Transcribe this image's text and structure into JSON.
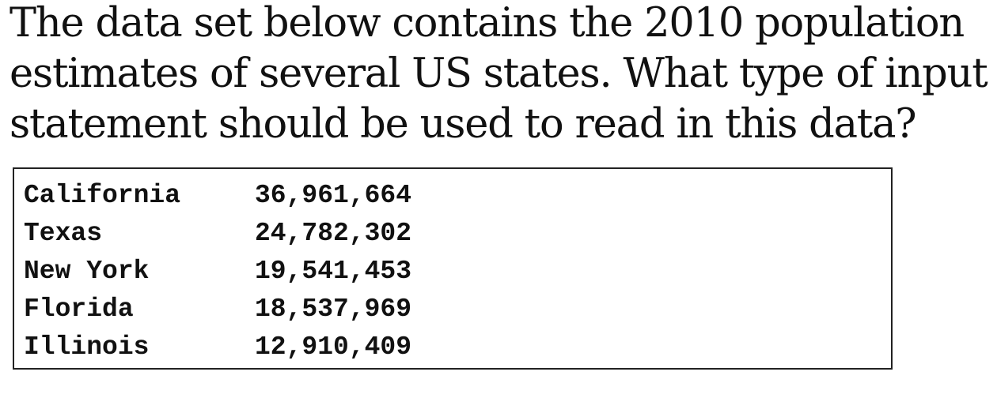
{
  "question": {
    "text": "The data set below contains the 2010 population estimates of several US states. What type of input statement should be used to read in this data?"
  },
  "dataset": {
    "rows": [
      {
        "state": "California",
        "population": "36,961,664"
      },
      {
        "state": "Texas",
        "population": "24,782,302"
      },
      {
        "state": "New York",
        "population": "19,541,453"
      },
      {
        "state": "Florida",
        "population": "18,537,969"
      },
      {
        "state": "Illinois",
        "population": "12,910,409"
      }
    ]
  }
}
